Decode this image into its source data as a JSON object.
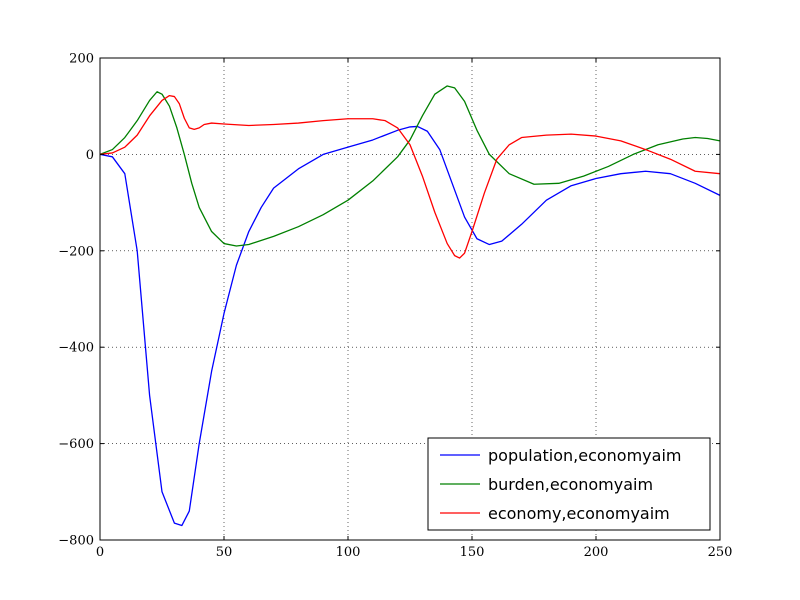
{
  "chart_data": {
    "type": "line",
    "title": "",
    "xlabel": "",
    "ylabel": "",
    "xlim": [
      0,
      250
    ],
    "ylim": [
      -800,
      200
    ],
    "grid": true,
    "legend_position": "lower-right",
    "x_ticks": [
      0,
      50,
      100,
      150,
      200,
      250
    ],
    "y_ticks": [
      200,
      0,
      -200,
      -400,
      -600,
      -800
    ],
    "x_tick_labels": [
      "0",
      "50",
      "100",
      "150",
      "200",
      "250"
    ],
    "y_tick_labels": [
      "200",
      "0",
      "−200",
      "−400",
      "−600",
      "−800"
    ],
    "series": [
      {
        "name": "population,economyaim",
        "color": "#0000ff",
        "x": [
          0,
          5,
          10,
          15,
          20,
          25,
          30,
          33,
          36,
          40,
          45,
          50,
          55,
          60,
          65,
          70,
          80,
          90,
          100,
          110,
          120,
          125,
          128,
          132,
          137,
          142,
          147,
          152,
          157,
          162,
          170,
          180,
          190,
          200,
          210,
          220,
          230,
          240,
          250
        ],
        "y": [
          0,
          -5,
          -40,
          -200,
          -500,
          -700,
          -765,
          -770,
          -740,
          -600,
          -450,
          -330,
          -230,
          -160,
          -110,
          -70,
          -30,
          0,
          15,
          30,
          50,
          57,
          58,
          48,
          10,
          -60,
          -130,
          -175,
          -187,
          -180,
          -145,
          -95,
          -65,
          -50,
          -40,
          -35,
          -40,
          -60,
          -85
        ]
      },
      {
        "name": "burden,economyaim",
        "color": "#008000",
        "x": [
          0,
          5,
          10,
          15,
          20,
          23,
          25,
          28,
          31,
          34,
          37,
          40,
          45,
          50,
          55,
          60,
          70,
          80,
          90,
          100,
          110,
          120,
          125,
          130,
          135,
          140,
          143,
          147,
          152,
          157,
          165,
          175,
          185,
          195,
          205,
          215,
          225,
          235,
          240,
          245,
          250
        ],
        "y": [
          0,
          10,
          35,
          70,
          112,
          130,
          125,
          100,
          55,
          0,
          -60,
          -110,
          -160,
          -185,
          -190,
          -187,
          -170,
          -150,
          -125,
          -95,
          -55,
          -5,
          30,
          80,
          125,
          142,
          138,
          110,
          50,
          0,
          -40,
          -62,
          -60,
          -45,
          -25,
          0,
          20,
          32,
          35,
          33,
          28
        ]
      },
      {
        "name": "economy,economyaim",
        "color": "#ff0000",
        "x": [
          0,
          5,
          10,
          15,
          20,
          25,
          28,
          30,
          32,
          34,
          36,
          38,
          40,
          42,
          45,
          50,
          60,
          70,
          80,
          90,
          100,
          110,
          115,
          120,
          125,
          130,
          135,
          140,
          143,
          145,
          147,
          150,
          155,
          160,
          165,
          170,
          180,
          190,
          200,
          210,
          220,
          230,
          240,
          250
        ],
        "y": [
          0,
          3,
          15,
          40,
          80,
          112,
          122,
          120,
          105,
          75,
          55,
          52,
          55,
          62,
          65,
          63,
          60,
          62,
          65,
          70,
          74,
          74,
          70,
          55,
          20,
          -45,
          -120,
          -185,
          -210,
          -215,
          -205,
          -160,
          -80,
          -10,
          20,
          35,
          40,
          42,
          38,
          28,
          10,
          -10,
          -35,
          -40
        ]
      }
    ]
  }
}
